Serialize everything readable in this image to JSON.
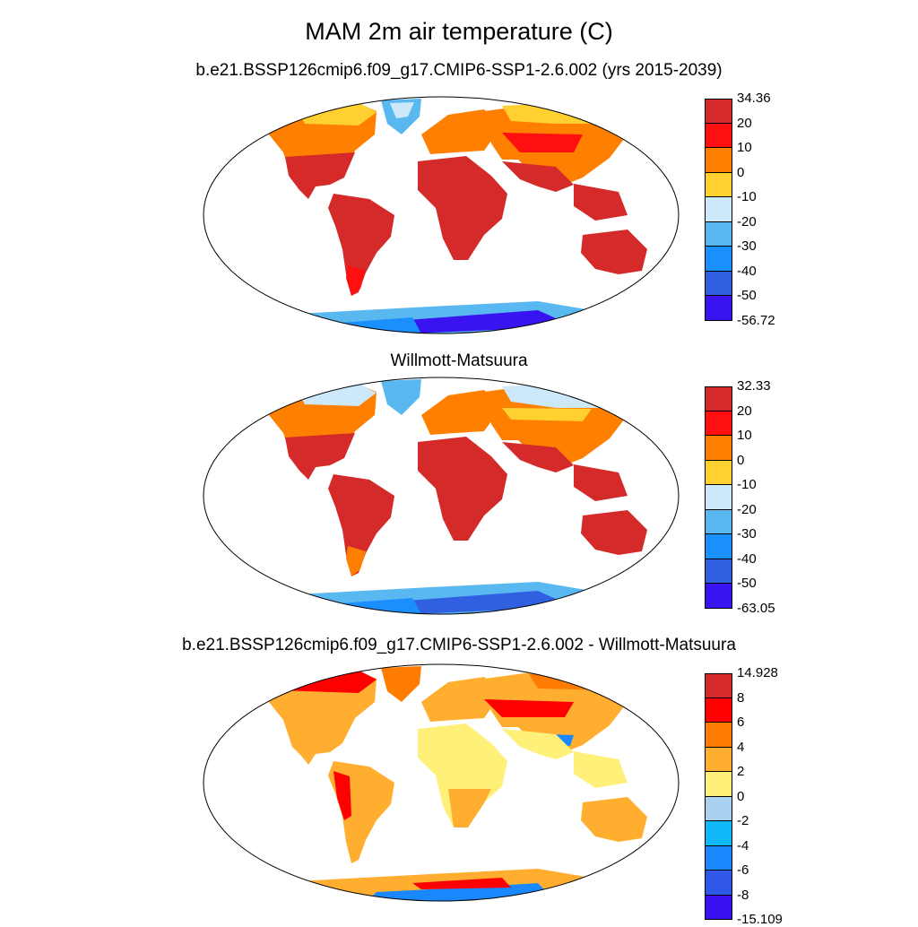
{
  "title": "MAM 2m air temperature (C)",
  "panels": [
    {
      "title": "b.e21.BSSP126cmip6.f09_g17.CMIP6-SSP1-2.6.002 (yrs 2015-2039)",
      "colorbar": {
        "labels": [
          "34.36",
          "20",
          "10",
          "0",
          "-10",
          "-20",
          "-30",
          "-40",
          "-50",
          "-56.72"
        ],
        "colors": [
          "#d42a2a",
          "#ff0f0f",
          "#ff8000",
          "#ffd030",
          "#cde8f8",
          "#5ab8f0",
          "#1a90ff",
          "#3060e0",
          "#3a14f0"
        ]
      }
    },
    {
      "title": "Willmott-Matsuura",
      "colorbar": {
        "labels": [
          "32.33",
          "20",
          "10",
          "0",
          "-10",
          "-20",
          "-30",
          "-40",
          "-50",
          "-63.05"
        ],
        "colors": [
          "#d42a2a",
          "#ff0f0f",
          "#ff8000",
          "#ffd030",
          "#cde8f8",
          "#5ab8f0",
          "#1a90ff",
          "#3060e0",
          "#3a14f0"
        ]
      }
    },
    {
      "title": "b.e21.BSSP126cmip6.f09_g17.CMIP6-SSP1-2.6.002 - Willmott-Matsuura",
      "colorbar": {
        "labels": [
          "14.928",
          "8",
          "6",
          "4",
          "2",
          "0",
          "-2",
          "-4",
          "-6",
          "-8",
          "-15.109"
        ],
        "colors": [
          "#d42a2a",
          "#ff0000",
          "#ff7c00",
          "#ffae30",
          "#fff07a",
          "#a8d2f0",
          "#10b8f8",
          "#1a88ff",
          "#3058e8",
          "#3a10f0"
        ]
      }
    }
  ]
}
